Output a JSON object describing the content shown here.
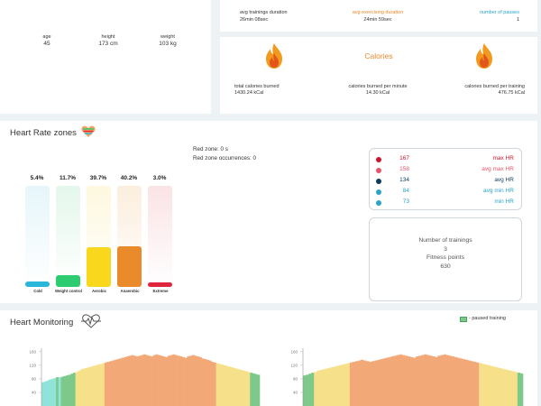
{
  "profile": {
    "age": {
      "label": "age",
      "value": "45"
    },
    "height": {
      "label": "height",
      "value": "173 cm"
    },
    "weight": {
      "label": "weight",
      "value": "103 kg"
    }
  },
  "summary": {
    "avg_duration": {
      "label": "avg trainings duration",
      "value": "26min 08sec"
    },
    "avg_exercising": {
      "label": "avg exercising duration",
      "value": "24min 59sec"
    },
    "pauses": {
      "label": "number of pauses",
      "value": "1"
    }
  },
  "calories": {
    "title": "Calories",
    "total": {
      "label": "total calories burned",
      "value": "1430.24 kCal"
    },
    "per_minute": {
      "label": "calories burned per minute",
      "value": "14.30 kCal"
    },
    "per_training": {
      "label": "calories burned per training",
      "value": "476.75 kCal"
    }
  },
  "zones": {
    "title": "Heart Rate zones",
    "red_zone": "Red zone: 0 s",
    "red_zone_occurrences": "Red zone occurrences: 0",
    "items": [
      {
        "name": "Cold",
        "pct": "5.4%",
        "level": 0.054,
        "color": "#29b6d8",
        "light": "#e6f6fa"
      },
      {
        "name": "Weight control",
        "pct": "11.7%",
        "level": 0.117,
        "color": "#2ecc71",
        "light": "#e4f7ec"
      },
      {
        "name": "Aerobic",
        "pct": "39.7%",
        "level": 0.397,
        "color": "#f9d71c",
        "light": "#fdf8de"
      },
      {
        "name": "Anaerobic",
        "pct": "40.2%",
        "level": 0.402,
        "color": "#e98b2a",
        "light": "#fbeedd"
      },
      {
        "name": "Extreme",
        "pct": "3.0%",
        "level": 0.03,
        "color": "#e0243c",
        "light": "#fae3e5"
      }
    ],
    "hr_stats": [
      {
        "value": "167",
        "name": "max HR",
        "color": "#d0142c"
      },
      {
        "value": "158",
        "name": "avg max HR",
        "color": "#e8556a"
      },
      {
        "value": "134",
        "name": "avg HR",
        "color": "#0b3c5d"
      },
      {
        "value": "84",
        "name": "avg min HR",
        "color": "#2aa3c9"
      },
      {
        "value": "73",
        "name": "min HR",
        "color": "#2aa3c9"
      }
    ],
    "trainings": {
      "label": "Number of trainings",
      "value": "3",
      "points_label": "Fitness points",
      "points_value": "630"
    }
  },
  "monitoring": {
    "title": "Heart Monitoring",
    "legend": "- paused training",
    "charts": [
      {
        "y_ticks": [
          "160",
          "120",
          "80",
          "40"
        ],
        "ylim": [
          0,
          170
        ],
        "values": [
          70,
          72,
          75,
          78,
          80,
          82,
          85,
          84,
          86,
          88,
          90,
          92,
          95,
          98,
          100,
          104,
          108,
          110,
          112,
          114,
          116,
          118,
          120,
          122,
          124,
          126,
          128,
          130,
          132,
          134,
          136,
          138,
          140,
          142,
          144,
          146,
          148,
          150,
          148,
          146,
          148,
          150,
          152,
          150,
          148,
          146,
          150,
          152,
          150,
          148,
          146,
          144,
          148,
          150,
          152,
          150,
          148,
          146,
          144,
          142,
          146,
          148,
          150,
          148,
          146,
          144,
          140,
          138,
          136,
          134,
          130,
          128,
          126,
          124,
          122,
          120,
          118,
          116,
          114,
          112,
          110,
          108,
          106,
          104,
          102,
          100,
          98,
          96,
          94,
          92
        ]
      },
      {
        "y_ticks": [
          "160",
          "120",
          "80",
          "40"
        ],
        "ylim": [
          0,
          170
        ],
        "values": [
          90,
          92,
          95,
          98,
          100,
          104,
          106,
          108,
          110,
          112,
          114,
          116,
          118,
          120,
          122,
          124,
          126,
          128,
          130,
          132,
          134,
          136,
          134,
          132,
          130,
          132,
          134,
          136,
          138,
          140,
          142,
          144,
          146,
          148,
          150,
          152,
          150,
          148,
          146,
          144,
          142,
          146,
          148,
          150,
          152,
          150,
          148,
          146,
          144,
          148,
          150,
          152,
          150,
          148,
          146,
          144,
          142,
          140,
          138,
          136,
          134,
          132,
          130,
          128,
          126,
          124,
          122,
          120,
          118,
          116,
          114,
          112,
          110,
          108,
          106,
          104,
          102,
          100,
          98,
          96
        ]
      }
    ],
    "zone_colors": {
      "cold": "#8fe3d8",
      "weight_control": "#7cc98a",
      "aerobic": "#f6e08a",
      "anaerobic": "#f2a877",
      "extreme": "#ec8a8a"
    }
  }
}
